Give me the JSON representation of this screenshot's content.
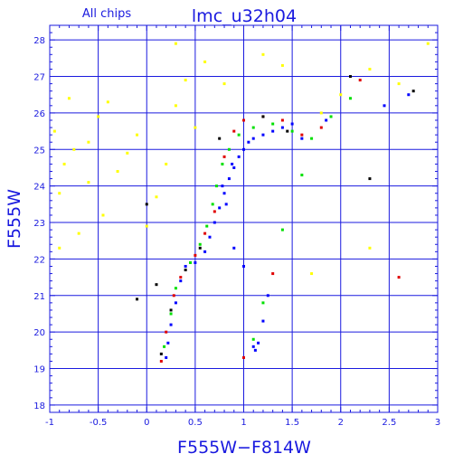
{
  "chart_data": {
    "type": "scatter",
    "title": "lmc_u32h04",
    "subtitle": "All chips",
    "xlabel": "F555W−F814W",
    "ylabel": "F555W",
    "xlim": [
      -1,
      3
    ],
    "ylim": [
      28.4,
      17.8
    ],
    "y_inverted": true,
    "grid": true,
    "legend": "none",
    "x_ticks": [
      -1,
      -0.5,
      0,
      0.5,
      1,
      1.5,
      2,
      2.5,
      3
    ],
    "x_tick_labels": [
      "-1",
      "-0.5",
      "0",
      "0.5",
      "1",
      "1.5",
      "2",
      "2.5",
      "3"
    ],
    "y_ticks": [
      18,
      19,
      20,
      21,
      22,
      23,
      24,
      25,
      26,
      27,
      28
    ],
    "y_tick_labels": [
      "18",
      "19",
      "20",
      "21",
      "22",
      "23",
      "24",
      "25",
      "26",
      "27",
      "28"
    ],
    "series": [
      {
        "color": "#0000ff",
        "points": [
          [
            0.2,
            19.3
          ],
          [
            0.22,
            19.7
          ],
          [
            0.25,
            20.2
          ],
          [
            0.3,
            20.8
          ],
          [
            0.35,
            21.4
          ],
          [
            0.4,
            21.8
          ],
          [
            0.5,
            21.9
          ],
          [
            0.6,
            22.2
          ],
          [
            0.65,
            22.6
          ],
          [
            0.7,
            23.0
          ],
          [
            0.75,
            23.4
          ],
          [
            0.8,
            23.8
          ],
          [
            0.85,
            24.2
          ],
          [
            0.9,
            24.5
          ],
          [
            0.95,
            24.8
          ],
          [
            1.0,
            25.0
          ],
          [
            1.05,
            25.2
          ],
          [
            1.1,
            25.3
          ],
          [
            1.2,
            25.4
          ],
          [
            1.3,
            25.5
          ],
          [
            1.4,
            25.6
          ],
          [
            1.5,
            25.7
          ],
          [
            1.1,
            19.6
          ],
          [
            1.12,
            19.5
          ],
          [
            1.15,
            19.7
          ],
          [
            1.2,
            20.3
          ],
          [
            1.25,
            21.0
          ],
          [
            1.0,
            21.8
          ],
          [
            0.9,
            22.3
          ],
          [
            0.82,
            23.5
          ],
          [
            0.78,
            24.0
          ],
          [
            0.88,
            24.6
          ],
          [
            1.6,
            25.3
          ],
          [
            1.85,
            25.8
          ],
          [
            2.45,
            26.2
          ],
          [
            2.7,
            26.5
          ]
        ]
      },
      {
        "color": "#00e000",
        "points": [
          [
            0.18,
            19.6
          ],
          [
            0.25,
            20.5
          ],
          [
            0.3,
            21.2
          ],
          [
            0.45,
            21.9
          ],
          [
            0.55,
            22.4
          ],
          [
            0.62,
            22.9
          ],
          [
            0.68,
            23.5
          ],
          [
            0.72,
            24.0
          ],
          [
            0.78,
            24.6
          ],
          [
            0.85,
            25.0
          ],
          [
            0.95,
            25.4
          ],
          [
            1.1,
            25.6
          ],
          [
            1.3,
            25.7
          ],
          [
            1.5,
            25.5
          ],
          [
            1.7,
            25.3
          ],
          [
            1.1,
            19.8
          ],
          [
            1.2,
            20.8
          ],
          [
            1.4,
            22.8
          ],
          [
            1.6,
            24.3
          ],
          [
            1.9,
            25.9
          ],
          [
            2.1,
            26.4
          ]
        ]
      },
      {
        "color": "#e00000",
        "points": [
          [
            0.15,
            19.2
          ],
          [
            0.2,
            20.0
          ],
          [
            0.28,
            21.0
          ],
          [
            0.35,
            21.5
          ],
          [
            0.5,
            22.1
          ],
          [
            0.6,
            22.7
          ],
          [
            0.7,
            23.3
          ],
          [
            0.8,
            24.8
          ],
          [
            0.9,
            25.5
          ],
          [
            1.0,
            25.8
          ],
          [
            1.2,
            25.9
          ],
          [
            1.4,
            25.8
          ],
          [
            1.6,
            25.4
          ],
          [
            1.0,
            19.3
          ],
          [
            1.3,
            21.6
          ],
          [
            1.8,
            25.6
          ],
          [
            2.2,
            26.9
          ],
          [
            2.6,
            21.5
          ]
        ]
      },
      {
        "color": "#000000",
        "points": [
          [
            0.15,
            19.4
          ],
          [
            0.25,
            20.6
          ],
          [
            0.4,
            21.7
          ],
          [
            0.55,
            22.3
          ],
          [
            0.75,
            25.3
          ],
          [
            1.2,
            25.9
          ],
          [
            1.45,
            25.5
          ],
          [
            0.1,
            21.3
          ],
          [
            -0.1,
            20.9
          ],
          [
            0.0,
            23.5
          ],
          [
            2.3,
            24.2
          ],
          [
            2.75,
            26.6
          ],
          [
            2.1,
            27.0
          ]
        ]
      },
      {
        "color": "#ffff00",
        "points": [
          [
            -0.9,
            22.3
          ],
          [
            -0.7,
            22.7
          ],
          [
            -0.85,
            24.6
          ],
          [
            -0.75,
            25.0
          ],
          [
            -0.6,
            25.2
          ],
          [
            -0.95,
            25.5
          ],
          [
            -0.5,
            25.9
          ],
          [
            -0.4,
            26.3
          ],
          [
            -0.8,
            26.4
          ],
          [
            -0.3,
            24.4
          ],
          [
            -0.2,
            24.9
          ],
          [
            -0.1,
            25.4
          ],
          [
            0.0,
            22.9
          ],
          [
            0.1,
            23.7
          ],
          [
            0.2,
            24.6
          ],
          [
            0.3,
            26.2
          ],
          [
            0.4,
            26.9
          ],
          [
            -0.6,
            24.1
          ],
          [
            -0.9,
            23.8
          ],
          [
            0.5,
            25.6
          ],
          [
            0.8,
            26.8
          ],
          [
            1.4,
            27.3
          ],
          [
            1.8,
            26.0
          ],
          [
            2.0,
            26.5
          ],
          [
            2.3,
            27.2
          ],
          [
            2.6,
            26.8
          ],
          [
            2.9,
            27.9
          ],
          [
            1.7,
            21.6
          ],
          [
            2.3,
            22.3
          ],
          [
            0.3,
            27.9
          ],
          [
            -0.45,
            23.2
          ],
          [
            0.6,
            27.4
          ],
          [
            1.2,
            27.6
          ]
        ]
      }
    ]
  }
}
